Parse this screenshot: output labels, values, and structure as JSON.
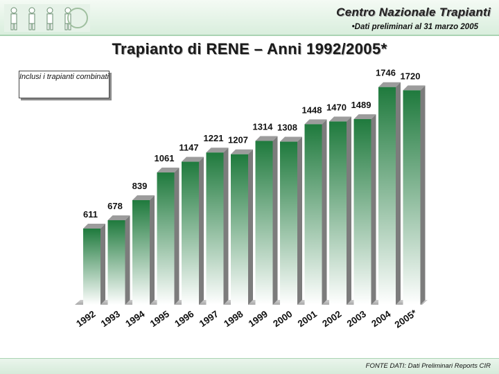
{
  "header": {
    "org_name": "Centro Nazionale Trapianti",
    "subnote": "•Dati preliminari al 31 marzo 2005"
  },
  "note_box": "Inclusi i trapianti combinati",
  "source": "FONTE DATI: Dati Preliminari Reports CIR",
  "colors": {
    "bar_top": "#1f7a3d",
    "bar_bottom": "#ffffff",
    "bar_side": "#7c7c7c",
    "header_band": "#d9eedd"
  },
  "chart_data": {
    "type": "bar",
    "title": "Trapianto di RENE – Anni 1992/2005*",
    "categories": [
      "1992",
      "1993",
      "1994",
      "1995",
      "1996",
      "1997",
      "1998",
      "1999",
      "2000",
      "2001",
      "2002",
      "2003",
      "2004",
      "2005*"
    ],
    "values": [
      611,
      678,
      839,
      1061,
      1147,
      1221,
      1207,
      1314,
      1308,
      1448,
      1470,
      1489,
      1746,
      1720
    ],
    "ylim": [
      0,
      1900
    ],
    "grid": false,
    "legend": "none",
    "data_labels": true
  }
}
